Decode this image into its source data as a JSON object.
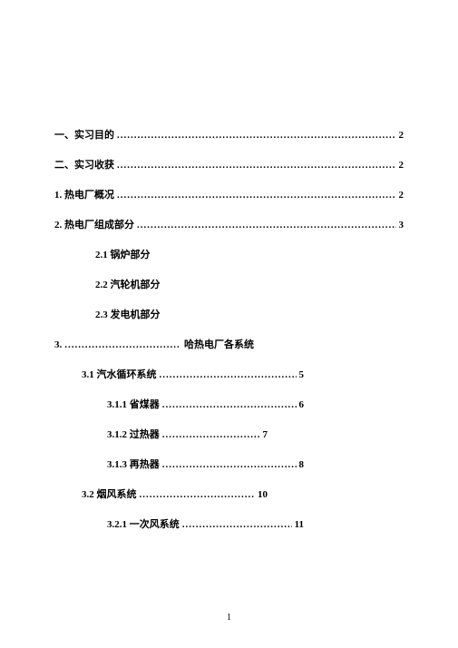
{
  "toc": {
    "l1": {
      "label": "一、实习目的",
      "page": "2"
    },
    "l2": {
      "label": "二、实习收获",
      "page": "2"
    },
    "l3": {
      "label": "1. 热电厂概况",
      "page": "2"
    },
    "l4": {
      "label": "2. 热电厂组成部分",
      "page": "3"
    },
    "l5": {
      "label": "2.1 锅炉部分"
    },
    "l6": {
      "label": "2.2 汽轮机部分"
    },
    "l7": {
      "label": "2.3 发电机部分"
    },
    "l8": {
      "label": "3.",
      "trailing": "哈热电厂各系统"
    },
    "l9": {
      "label": "3.1 汽水循环系统",
      "page": "5"
    },
    "l10": {
      "label": "3.1.1 省煤器",
      "page": "6"
    },
    "l11": {
      "label": "3.1.2 过热器",
      "page": "7"
    },
    "l12": {
      "label": "3.1.3 再热器",
      "page": "8"
    },
    "l13": {
      "label": "3.2 烟风系统",
      "page": "10"
    },
    "l14": {
      "label": "3.2.1 一次风系统",
      "page": "11"
    }
  },
  "footer": {
    "page_number": "1"
  }
}
